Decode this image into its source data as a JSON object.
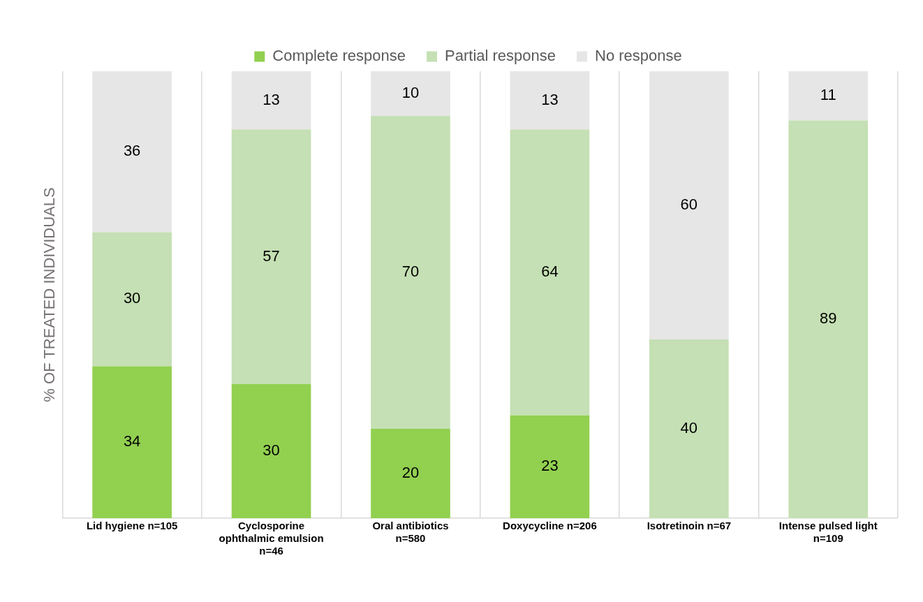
{
  "chart_data": {
    "type": "bar",
    "stacked": true,
    "ylabel": "% OF TREATED INDIVIDUALS",
    "categories": [
      "Lid hygiene n=105",
      "Cyclosporine ophthalmic emulsion n=46",
      "Oral antibiotics n=580",
      "Doxycycline n=206",
      "Isotretinoin n=67",
      "Intense pulsed light n=109"
    ],
    "series": [
      {
        "name": "Complete response",
        "color": "#92d050",
        "values": [
          34,
          30,
          20,
          23,
          null,
          null
        ]
      },
      {
        "name": "Partial response",
        "color": "#c5e0b4",
        "values": [
          30,
          57,
          70,
          64,
          40,
          89
        ]
      },
      {
        "name": "No response",
        "color": "#e7e6e6",
        "values": [
          36,
          13,
          10,
          13,
          60,
          11
        ]
      }
    ],
    "ylim": [
      0,
      100
    ],
    "tick_labels": "x",
    "grid": "x",
    "legend": "top",
    "data_labels": true
  }
}
